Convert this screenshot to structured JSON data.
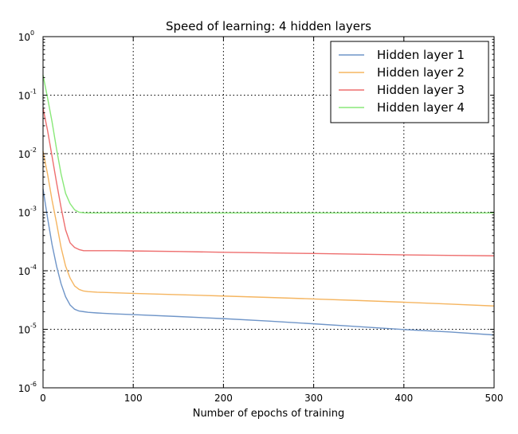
{
  "chart_data": {
    "type": "line",
    "title": "Speed of learning: 4 hidden layers",
    "xlabel": "Number of epochs of training",
    "ylabel": "",
    "xlim": [
      0,
      500
    ],
    "ylim": [
      1e-06,
      1
    ],
    "y_scale": "log",
    "grid": true,
    "legend_position": "top-right",
    "x_ticks": [
      {
        "value": 0,
        "label": "0"
      },
      {
        "value": 100,
        "label": "100"
      },
      {
        "value": 200,
        "label": "200"
      },
      {
        "value": 300,
        "label": "300"
      },
      {
        "value": 400,
        "label": "400"
      },
      {
        "value": 500,
        "label": "500"
      }
    ],
    "y_ticks": [
      {
        "value": 1e-06,
        "base": "10",
        "exp": "-6"
      },
      {
        "value": 1e-05,
        "base": "10",
        "exp": "-5"
      },
      {
        "value": 0.0001,
        "base": "10",
        "exp": "-4"
      },
      {
        "value": 0.001,
        "base": "10",
        "exp": "-3"
      },
      {
        "value": 0.01,
        "base": "10",
        "exp": "-2"
      },
      {
        "value": 0.1,
        "base": "10",
        "exp": "-1"
      },
      {
        "value": 1,
        "base": "10",
        "exp": "0"
      }
    ],
    "x": [
      0,
      5,
      10,
      15,
      20,
      25,
      30,
      35,
      40,
      45,
      50,
      60,
      80,
      100,
      150,
      200,
      250,
      300,
      350,
      400,
      450,
      500
    ],
    "series": [
      {
        "name": "Hidden layer 1",
        "color": "#6f95c8",
        "values": [
          0.0025,
          0.0008,
          0.00028,
          0.00012,
          6e-05,
          3.6e-05,
          2.6e-05,
          2.2e-05,
          2.05e-05,
          2e-05,
          1.95e-05,
          1.9e-05,
          1.83e-05,
          1.78e-05,
          1.65e-05,
          1.52e-05,
          1.38e-05,
          1.24e-05,
          1.11e-05,
          9.9e-06,
          9e-06,
          8e-06
        ]
      },
      {
        "name": "Hidden layer 2",
        "color": "#f5b560",
        "values": [
          0.011,
          0.0045,
          0.0016,
          0.00065,
          0.00025,
          0.00012,
          7.5e-05,
          5.5e-05,
          4.8e-05,
          4.5e-05,
          4.4e-05,
          4.3e-05,
          4.2e-05,
          4.1e-05,
          3.9e-05,
          3.7e-05,
          3.5e-05,
          3.3e-05,
          3.1e-05,
          2.9e-05,
          2.7e-05,
          2.5e-05
        ]
      },
      {
        "name": "Hidden layer 3",
        "color": "#ee6e6e",
        "values": [
          0.06,
          0.025,
          0.009,
          0.0032,
          0.0012,
          0.0005,
          0.0003,
          0.00025,
          0.00023,
          0.00022,
          0.00022,
          0.00022,
          0.00022,
          0.000218,
          0.000213,
          0.000207,
          0.000202,
          0.000197,
          0.000192,
          0.000187,
          0.000183,
          0.00018
        ]
      },
      {
        "name": "Hidden layer 4",
        "color": "#88e878",
        "values": [
          0.22,
          0.09,
          0.035,
          0.012,
          0.0045,
          0.0021,
          0.0014,
          0.0011,
          0.001,
          0.00098,
          0.00097,
          0.00097,
          0.00097,
          0.00097,
          0.00097,
          0.00097,
          0.00097,
          0.00097,
          0.00097,
          0.00097,
          0.00097,
          0.00097
        ]
      }
    ]
  }
}
